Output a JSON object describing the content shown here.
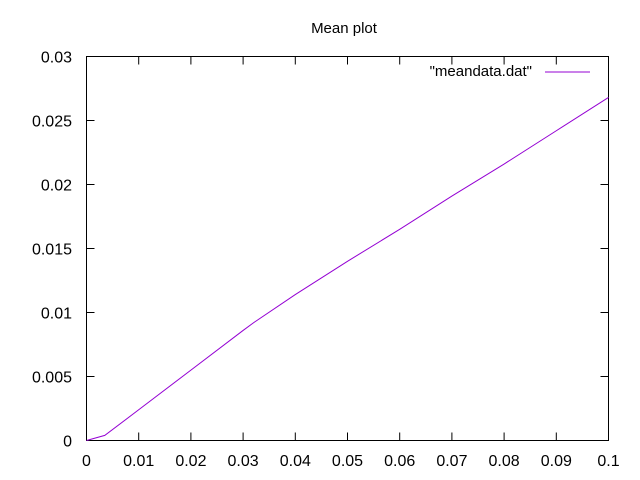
{
  "chart_data": {
    "type": "line",
    "title": "Mean plot",
    "xlabel": "",
    "ylabel": "",
    "xlim": [
      0,
      0.1
    ],
    "ylim": [
      0,
      0.03
    ],
    "x_ticks": [
      "0",
      "0.01",
      "0.02",
      "0.03",
      "0.04",
      "0.05",
      "0.06",
      "0.07",
      "0.08",
      "0.09",
      "0.1"
    ],
    "y_ticks": [
      "0",
      "0.005",
      "0.01",
      "0.015",
      "0.02",
      "0.025",
      "0.03"
    ],
    "grid": false,
    "legend_position": "top-right",
    "series": [
      {
        "name": "\"meandata.dat\"",
        "color": "#9400d3",
        "x": [
          0,
          0.0035,
          0.01,
          0.02,
          0.03,
          0.032,
          0.04,
          0.05,
          0.06,
          0.07,
          0.08,
          0.09,
          0.1
        ],
        "y": [
          0,
          0.0004,
          0.0024,
          0.0055,
          0.0086,
          0.0092,
          0.0114,
          0.014,
          0.0165,
          0.0191,
          0.0216,
          0.0242,
          0.0268
        ]
      }
    ]
  }
}
